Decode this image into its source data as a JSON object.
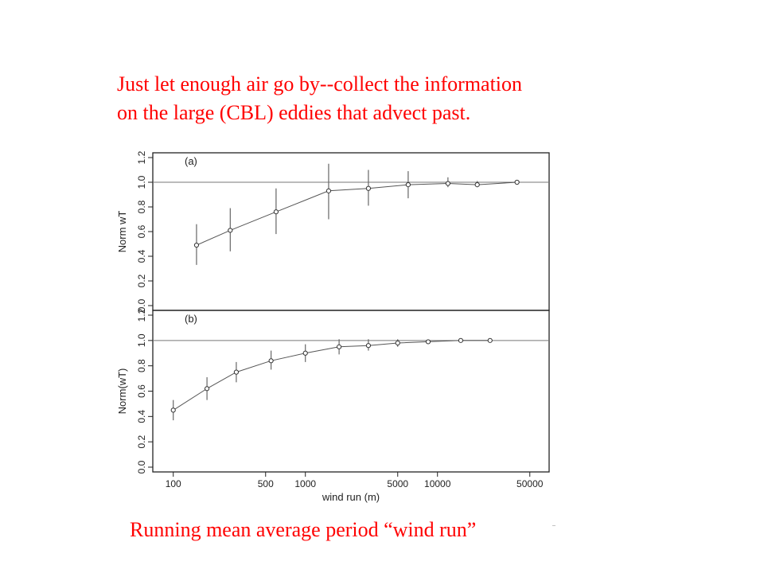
{
  "slide": {
    "headline_line1": "Just let enough air go by--collect the information",
    "headline_line2": "on the large (CBL) eddies that advect past.",
    "caption": "Running mean average period “wind run”"
  },
  "chart_data": [
    {
      "type": "scatter",
      "panel_label": "(a)",
      "ylabel": "Norm wT",
      "xlabel": "",
      "xscale": "log",
      "xlim": [
        70,
        70000
      ],
      "ylim": [
        0.0,
        1.2
      ],
      "yticks": [
        0.0,
        0.2,
        0.4,
        0.6,
        0.8,
        1.0,
        1.2
      ],
      "reference_line": 1.0,
      "grid": false,
      "points": [
        {
          "x": 150,
          "y": 0.49,
          "lo": 0.33,
          "hi": 0.66
        },
        {
          "x": 270,
          "y": 0.61,
          "lo": 0.44,
          "hi": 0.79
        },
        {
          "x": 600,
          "y": 0.76,
          "lo": 0.58,
          "hi": 0.95
        },
        {
          "x": 1500,
          "y": 0.93,
          "lo": 0.7,
          "hi": 1.15
        },
        {
          "x": 3000,
          "y": 0.95,
          "lo": 0.81,
          "hi": 1.1
        },
        {
          "x": 6000,
          "y": 0.98,
          "lo": 0.87,
          "hi": 1.09
        },
        {
          "x": 12000,
          "y": 0.99,
          "lo": 0.96,
          "hi": 1.04
        },
        {
          "x": 20000,
          "y": 0.98,
          "lo": 0.96,
          "hi": 1.01
        },
        {
          "x": 40000,
          "y": 1.0,
          "lo": 1.0,
          "hi": 1.0
        }
      ]
    },
    {
      "type": "scatter",
      "panel_label": "(b)",
      "ylabel": "Norm(wT)",
      "xlabel": "wind run (m)",
      "xscale": "log",
      "xlim": [
        70,
        70000
      ],
      "ylim": [
        0.0,
        1.2
      ],
      "yticks": [
        0.0,
        0.2,
        0.4,
        0.6,
        0.8,
        1.0,
        1.2
      ],
      "xticks": [
        100,
        500,
        1000,
        5000,
        10000,
        50000
      ],
      "reference_line": 1.0,
      "grid": false,
      "points": [
        {
          "x": 100,
          "y": 0.45,
          "lo": 0.37,
          "hi": 0.53
        },
        {
          "x": 180,
          "y": 0.62,
          "lo": 0.53,
          "hi": 0.71
        },
        {
          "x": 300,
          "y": 0.75,
          "lo": 0.67,
          "hi": 0.83
        },
        {
          "x": 550,
          "y": 0.84,
          "lo": 0.77,
          "hi": 0.92
        },
        {
          "x": 1000,
          "y": 0.9,
          "lo": 0.83,
          "hi": 0.97
        },
        {
          "x": 1800,
          "y": 0.95,
          "lo": 0.89,
          "hi": 1.01
        },
        {
          "x": 3000,
          "y": 0.96,
          "lo": 0.92,
          "hi": 1.01
        },
        {
          "x": 5000,
          "y": 0.98,
          "lo": 0.95,
          "hi": 1.01
        },
        {
          "x": 8500,
          "y": 0.99,
          "lo": 0.98,
          "hi": 1.0
        },
        {
          "x": 15000,
          "y": 1.0,
          "lo": 1.0,
          "hi": 1.0
        },
        {
          "x": 25000,
          "y": 1.0,
          "lo": 1.0,
          "hi": 1.0
        }
      ]
    }
  ]
}
